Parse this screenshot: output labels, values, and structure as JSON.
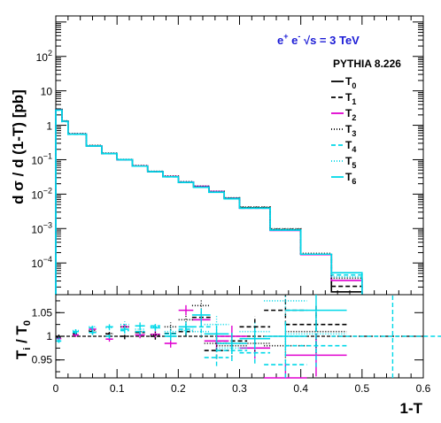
{
  "chart_data": [
    {
      "type": "line",
      "panel": "main",
      "ylabel": "d  σ / d (1-T) [pb]",
      "yscale": "log",
      "ylim": [
        1.2e-05,
        1500
      ],
      "xlim": [
        0,
        0.6
      ],
      "y_ticks": [
        {
          "value": 0.0001,
          "base": "10",
          "exp": "−4"
        },
        {
          "value": 0.001,
          "base": "10",
          "exp": "−3"
        },
        {
          "value": 0.01,
          "base": "10",
          "exp": "−2"
        },
        {
          "value": 0.1,
          "base": "10",
          "exp": "−1"
        },
        {
          "value": 1,
          "base": "1",
          "exp": ""
        },
        {
          "value": 10,
          "base": "10",
          "exp": ""
        },
        {
          "value": 100,
          "base": "10",
          "exp": "2"
        }
      ],
      "bin_edges": [
        0,
        0.01,
        0.02,
        0.05,
        0.075,
        0.1,
        0.125,
        0.15,
        0.175,
        0.2,
        0.225,
        0.25,
        0.275,
        0.3,
        0.35,
        0.4,
        0.45,
        0.5
      ],
      "series": [
        {
          "name": "T0",
          "color": "#000000",
          "dash": "",
          "values": [
            2.8,
            1.3,
            0.55,
            0.25,
            0.15,
            0.1,
            0.065,
            0.045,
            0.032,
            0.022,
            0.016,
            0.0115,
            0.0075,
            0.004,
            0.00092,
            0.00018,
            1.45e-05
          ]
        },
        {
          "name": "T1",
          "color": "#000000",
          "dash": "5,3",
          "values": [
            2.85,
            1.32,
            0.56,
            0.255,
            0.152,
            0.101,
            0.066,
            0.0455,
            0.0322,
            0.0222,
            0.0165,
            0.0118,
            0.0077,
            0.0041,
            0.00095,
            0.00018,
            2.1e-05
          ]
        },
        {
          "name": "T2",
          "color": "#e000d0",
          "dash": "",
          "values": [
            2.82,
            1.3,
            0.555,
            0.252,
            0.151,
            0.1,
            0.0655,
            0.0452,
            0.0325,
            0.0225,
            0.0168,
            0.012,
            0.0076,
            0.0039,
            0.00088,
            0.000175,
            3.1e-05
          ]
        },
        {
          "name": "T3",
          "color": "#000000",
          "dash": "1,2",
          "values": [
            2.9,
            1.35,
            0.57,
            0.26,
            0.155,
            0.102,
            0.067,
            0.046,
            0.0332,
            0.023,
            0.017,
            0.012,
            0.0078,
            0.0042,
            0.00098,
            0.00019,
            3.6e-05
          ]
        },
        {
          "name": "T4",
          "color": "#00d8e8",
          "dash": "5,3",
          "values": [
            2.75,
            1.28,
            0.545,
            0.248,
            0.149,
            0.0995,
            0.065,
            0.0448,
            0.0318,
            0.0219,
            0.0159,
            0.0114,
            0.0074,
            0.0039,
            0.00091,
            0.00018,
            4.5e-05
          ]
        },
        {
          "name": "T5",
          "color": "#00d8e8",
          "dash": "1,2",
          "values": [
            2.8,
            1.31,
            0.552,
            0.251,
            0.151,
            0.1,
            0.0652,
            0.0451,
            0.0321,
            0.0223,
            0.0161,
            0.0116,
            0.0076,
            0.004,
            0.00094,
            0.00018,
            4e-05
          ]
        },
        {
          "name": "T6",
          "color": "#00d8e8",
          "dash": "",
          "values": [
            2.78,
            1.3,
            0.55,
            0.25,
            0.15,
            0.1,
            0.065,
            0.0449,
            0.0319,
            0.022,
            0.0158,
            0.0113,
            0.0073,
            0.0039,
            0.0009,
            0.00018,
            5.2e-05
          ]
        }
      ]
    },
    {
      "type": "scatter",
      "panel": "ratio",
      "xlabel": "1-T",
      "ylabel": "T_i / T_0",
      "xlim": [
        0,
        0.6
      ],
      "ylim": [
        0.912,
        1.088
      ],
      "reference_line": 1,
      "x_ticks": [
        "0",
        "0.1",
        "0.2",
        "0.3",
        "0.4",
        "0.5",
        "0.6"
      ],
      "y_ticks": [
        "0.95",
        "1",
        "1.05"
      ],
      "series": [
        {
          "name": "T1",
          "color": "#000000",
          "dash": "5,3",
          "points": [
            [
              0.005,
              0.998,
              0.004
            ],
            [
              0.0325,
              1.005,
              0.005
            ],
            [
              0.06,
              1.01,
              0.006
            ],
            [
              0.0875,
              1.005,
              0.006
            ],
            [
              0.1125,
              1.0,
              0.007
            ],
            [
              0.1375,
              1.008,
              0.008
            ],
            [
              0.1625,
              1.0,
              0.008
            ],
            [
              0.1875,
              1.006,
              0.01
            ],
            [
              0.2125,
              1.01,
              0.012
            ],
            [
              0.2375,
              1.04,
              0.015
            ],
            [
              0.2625,
              0.97,
              0.02
            ],
            [
              0.2875,
              0.99,
              0.025
            ],
            [
              0.325,
              1.02,
              0.025
            ],
            [
              0.375,
              1.055,
              0.035
            ],
            [
              0.425,
              1.025,
              0.05
            ]
          ]
        },
        {
          "name": "T2",
          "color": "#e000d0",
          "dash": "",
          "points": [
            [
              0.005,
              0.995,
              0.004
            ],
            [
              0.0325,
              1.003,
              0.005
            ],
            [
              0.06,
              1.015,
              0.006
            ],
            [
              0.0875,
              0.994,
              0.006
            ],
            [
              0.1125,
              1.02,
              0.007
            ],
            [
              0.1375,
              1.003,
              0.008
            ],
            [
              0.1625,
              1.004,
              0.008
            ],
            [
              0.1875,
              0.985,
              0.01
            ],
            [
              0.2125,
              1.055,
              0.012
            ],
            [
              0.2375,
              1.035,
              0.015
            ],
            [
              0.2625,
              0.99,
              0.02
            ],
            [
              0.2875,
              1.0,
              0.025
            ],
            [
              0.325,
              0.975,
              0.025
            ],
            [
              0.375,
              0.912,
              0.035
            ],
            [
              0.425,
              0.96,
              0.05
            ]
          ]
        },
        {
          "name": "T3",
          "color": "#000000",
          "dash": "1,2",
          "points": [
            [
              0.005,
              1.0,
              0.004
            ],
            [
              0.0325,
              1.01,
              0.005
            ],
            [
              0.06,
              1.012,
              0.006
            ],
            [
              0.0875,
              1.006,
              0.006
            ],
            [
              0.1125,
              1.02,
              0.007
            ],
            [
              0.1375,
              1.01,
              0.008
            ],
            [
              0.1625,
              1.003,
              0.008
            ],
            [
              0.1875,
              1.02,
              0.01
            ],
            [
              0.2125,
              1.035,
              0.012
            ],
            [
              0.2375,
              1.065,
              0.015
            ],
            [
              0.2625,
              0.985,
              0.02
            ],
            [
              0.2875,
              0.98,
              0.025
            ],
            [
              0.325,
              0.985,
              0.025
            ],
            [
              0.375,
              0.98,
              0.035
            ],
            [
              0.425,
              1.01,
              0.05
            ]
          ]
        },
        {
          "name": "T4",
          "color": "#00d8e8",
          "dash": "5,3",
          "points": [
            [
              0.005,
              0.99,
              0.004
            ],
            [
              0.0325,
              1.008,
              0.005
            ],
            [
              0.06,
              1.018,
              0.006
            ],
            [
              0.0875,
              1.0,
              0.006
            ],
            [
              0.1125,
              1.012,
              0.007
            ],
            [
              0.1375,
              1.01,
              0.008
            ],
            [
              0.1625,
              1.022,
              0.008
            ],
            [
              0.1875,
              1.005,
              0.01
            ],
            [
              0.2125,
              1.015,
              0.012
            ],
            [
              0.2375,
              1.02,
              0.015
            ],
            [
              0.2625,
              0.955,
              0.02
            ],
            [
              0.2875,
              0.97,
              0.025
            ],
            [
              0.325,
              0.965,
              0.025
            ],
            [
              0.375,
              0.94,
              0.035
            ],
            [
              0.425,
              0.98,
              0.05
            ],
            [
              0.55,
              1.0,
              0.1
            ]
          ]
        },
        {
          "name": "T5",
          "color": "#00d8e8",
          "dash": "1,2",
          "points": [
            [
              0.005,
              0.995,
              0.004
            ],
            [
              0.0325,
              1.012,
              0.005
            ],
            [
              0.06,
              1.02,
              0.006
            ],
            [
              0.0875,
              1.018,
              0.006
            ],
            [
              0.1125,
              1.025,
              0.007
            ],
            [
              0.1375,
              1.015,
              0.008
            ],
            [
              0.1625,
              1.02,
              0.008
            ],
            [
              0.1875,
              1.01,
              0.01
            ],
            [
              0.2125,
              1.012,
              0.012
            ],
            [
              0.2375,
              1.01,
              0.015
            ],
            [
              0.2625,
              1.025,
              0.02
            ],
            [
              0.2875,
              0.975,
              0.025
            ],
            [
              0.325,
              1.01,
              0.025
            ],
            [
              0.375,
              1.075,
              0.035
            ],
            [
              0.425,
              1.005,
              0.05
            ]
          ]
        },
        {
          "name": "T6",
          "color": "#00d8e8",
          "dash": "",
          "points": [
            [
              0.005,
              0.99,
              0.004
            ],
            [
              0.0325,
              1.01,
              0.005
            ],
            [
              0.06,
              1.008,
              0.006
            ],
            [
              0.0875,
              1.02,
              0.006
            ],
            [
              0.1125,
              1.015,
              0.007
            ],
            [
              0.1375,
              1.022,
              0.008
            ],
            [
              0.1625,
              1.018,
              0.008
            ],
            [
              0.1875,
              1.0,
              0.01
            ],
            [
              0.2125,
              1.02,
              0.012
            ],
            [
              0.2375,
              1.045,
              0.015
            ],
            [
              0.2625,
              1.005,
              0.02
            ],
            [
              0.2875,
              0.985,
              0.025
            ],
            [
              0.325,
              0.995,
              0.025
            ],
            [
              0.375,
              1.0,
              0.035
            ],
            [
              0.425,
              1.055,
              0.05
            ]
          ]
        }
      ]
    }
  ],
  "annotation": {
    "energy_main": "e",
    "energy_sup1": "+",
    "energy_mid": " e",
    "energy_sup2": "-",
    "energy_tail": "  √s = 3 TeV"
  },
  "legend": {
    "title": "PYTHIA 8.226",
    "entries": [
      {
        "label": "T",
        "sub": "0"
      },
      {
        "label": "T",
        "sub": "1"
      },
      {
        "label": "T",
        "sub": "2"
      },
      {
        "label": "T",
        "sub": "3"
      },
      {
        "label": "T",
        "sub": "4"
      },
      {
        "label": "T",
        "sub": "5"
      },
      {
        "label": "T",
        "sub": "6"
      }
    ]
  },
  "axes_text": {
    "ylabel_main": "d  σ / d (1-T) [pb]",
    "ylabel_ratio_main": "T",
    "ylabel_ratio_sub1": "i",
    "ylabel_ratio_mid": " / T",
    "ylabel_ratio_sub2": "0",
    "xlabel": "1-T"
  }
}
